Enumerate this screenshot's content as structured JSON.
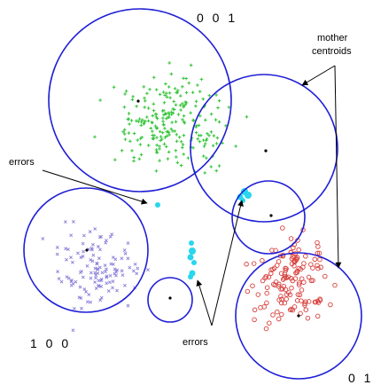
{
  "labels": {
    "cluster_top": "0 0 1",
    "cluster_left": "1 0 0",
    "cluster_right": "0 1",
    "mother_line1": "mother",
    "mother_line2": "centroids",
    "errors_left": "errors",
    "errors_bottom": "errors"
  },
  "colors": {
    "circle": "#1f1fd6",
    "green_points": "#35c43a",
    "blue_points": "#8a7fd8",
    "red_points": "#d8403c",
    "error_points": "#28d6ee",
    "centroid": "#000000",
    "arrow": "#000000"
  }
}
